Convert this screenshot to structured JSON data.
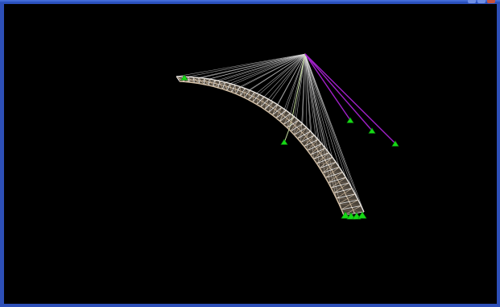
{
  "window": {
    "controls": [
      "minimize-button",
      "maximize-button",
      "close-button"
    ]
  },
  "viewport": {
    "background": "#000000",
    "model": {
      "description_visible_text": "",
      "colors": {
        "deck_frame": "#d8c3a8",
        "deck_wire": "#f0f0f0",
        "stay_cables": "#d9d9d9",
        "highlight_cables": "#a020c8",
        "supports": "#16d916",
        "pylon": "#c8e0a0"
      }
    }
  }
}
